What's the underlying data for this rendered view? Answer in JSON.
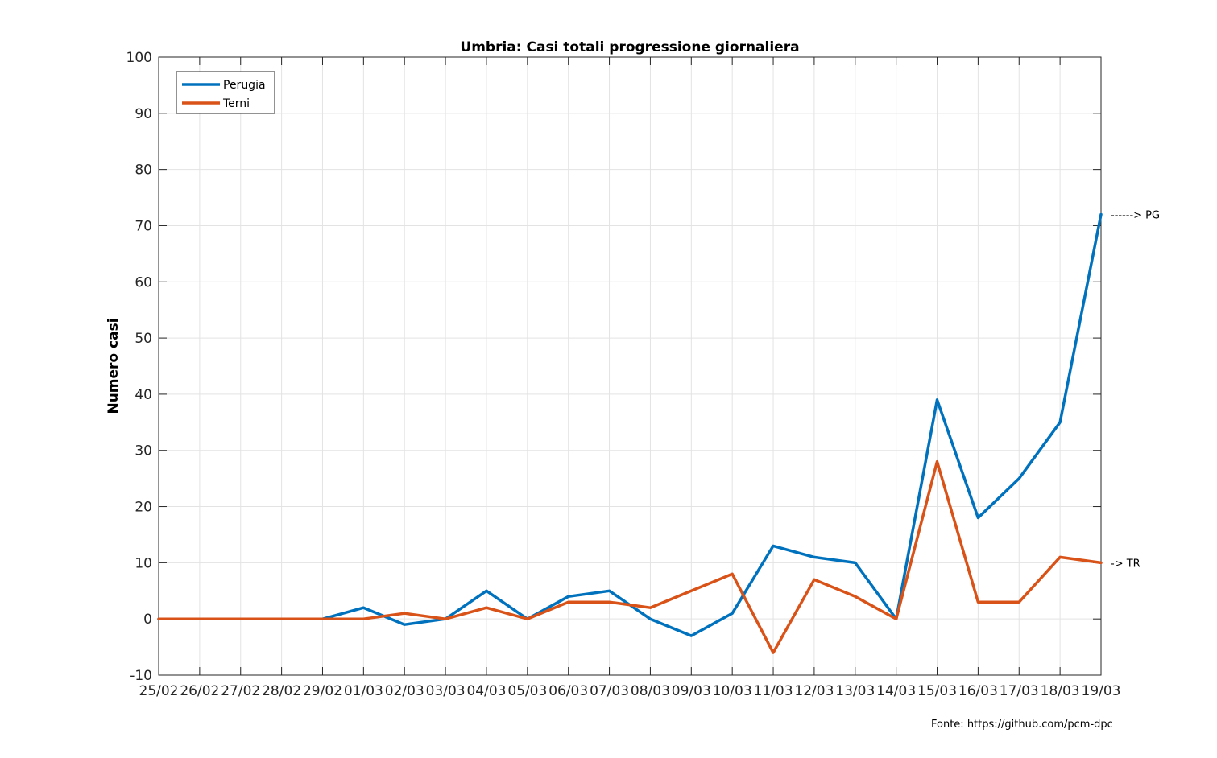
{
  "chart_data": {
    "type": "line",
    "title": "Umbria: Casi totali progressione giornaliera",
    "xlabel": "",
    "ylabel": "Numero casi",
    "categories": [
      "25/02",
      "26/02",
      "27/02",
      "28/02",
      "29/02",
      "01/03",
      "02/03",
      "03/03",
      "04/03",
      "05/03",
      "06/03",
      "07/03",
      "08/03",
      "09/03",
      "10/03",
      "11/03",
      "12/03",
      "13/03",
      "14/03",
      "15/03",
      "16/03",
      "17/03",
      "18/03",
      "19/03"
    ],
    "ylim": [
      -10,
      100
    ],
    "yticks": [
      -10,
      0,
      10,
      20,
      30,
      40,
      50,
      60,
      70,
      80,
      90,
      100
    ],
    "grid": true,
    "legend_position": "top-left",
    "series": [
      {
        "name": "Perugia",
        "color": "#0072bd",
        "values": [
          0,
          0,
          0,
          0,
          0,
          2,
          -1,
          0,
          5,
          0,
          4,
          5,
          0,
          -3,
          1,
          13,
          11,
          10,
          0,
          39,
          18,
          25,
          35,
          72
        ]
      },
      {
        "name": "Terni",
        "color": "#d95319",
        "values": [
          0,
          0,
          0,
          0,
          0,
          0,
          1,
          0,
          2,
          0,
          3,
          3,
          2,
          5,
          8,
          -6,
          7,
          4,
          0,
          28,
          3,
          3,
          11,
          10
        ]
      }
    ],
    "annotations": [
      {
        "text": "------> PG",
        "series": "Perugia"
      },
      {
        "text": "-> TR",
        "series": "Terni"
      }
    ],
    "source": "Fonte: https://github.com/pcm-dpc"
  }
}
